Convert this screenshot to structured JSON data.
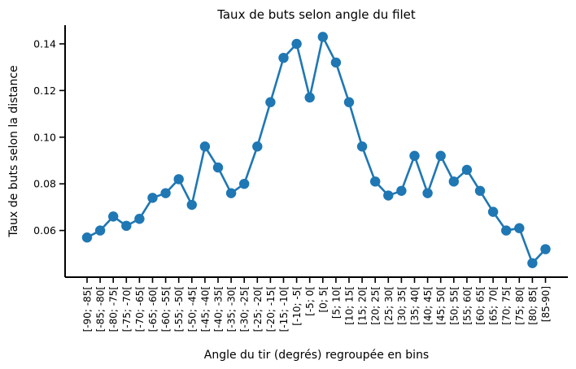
{
  "chart_data": {
    "type": "line",
    "title": "Taux de buts selon angle du filet",
    "xlabel": "Angle du tir (degrés) regroupée en bins",
    "ylabel": "Taux de buts selon la distance",
    "ylim": [
      0.04,
      0.148
    ],
    "yticks": [
      "0.06",
      "0.08",
      "0.10",
      "0.12",
      "0.14"
    ],
    "grid": false,
    "series_color": "#1f77b4",
    "categories": [
      "[-90; -85[",
      "[-85; -80[",
      "[-80; -75[",
      "[-75; -70[",
      "[-70; -65[",
      "[-65; -60[",
      "[-60; -55[",
      "[-55; -50[",
      "[-50; -45[",
      "[-45; -40[",
      "[-40; -35[",
      "[-35; -30[",
      "[-30; -25[",
      "[-25; -20[",
      "[-20; -15[",
      "[-15; -10[",
      "[-10; -5[",
      "[-5; 0[",
      "[0; 5[",
      "[5; 10[",
      "[10; 15[",
      "[15; 20[",
      "[20; 25[",
      "[25; 30[",
      "[30; 35[",
      "[35; 40[",
      "[40; 45[",
      "[45; 50[",
      "[50; 55[",
      "[55; 60[",
      "[60; 65[",
      "[65; 70[",
      "[70; 75[",
      "[75; 80[",
      "[80; 85[",
      "[85-90]"
    ],
    "values": [
      0.057,
      0.06,
      0.066,
      0.062,
      0.065,
      0.074,
      0.076,
      0.082,
      0.071,
      0.096,
      0.087,
      0.076,
      0.08,
      0.096,
      0.115,
      0.134,
      0.14,
      0.117,
      0.143,
      0.132,
      0.115,
      0.096,
      0.081,
      0.075,
      0.077,
      0.092,
      0.076,
      0.092,
      0.081,
      0.086,
      0.077,
      0.068,
      0.06,
      0.061,
      0.046,
      0.052
    ]
  }
}
